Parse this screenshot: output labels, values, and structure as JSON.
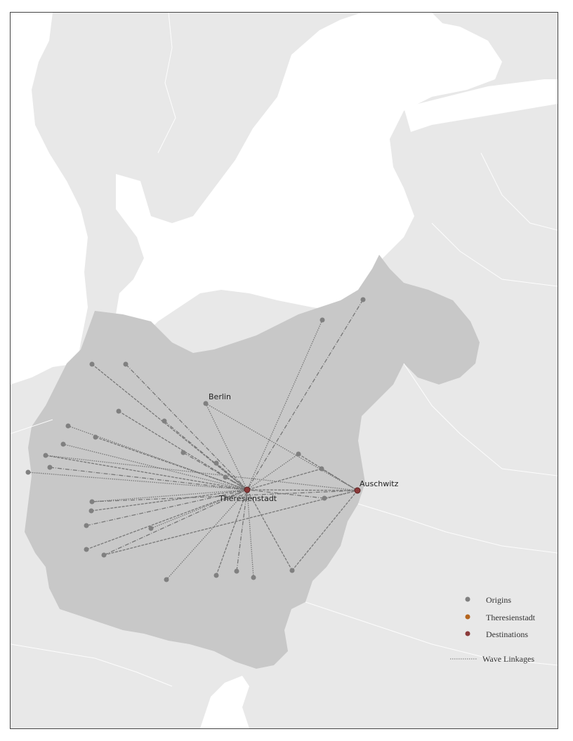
{
  "map": {
    "labels": {
      "berlin": "Berlin",
      "theresienstadt": "Theresienstadt",
      "auschwitz": "Auschwitz"
    },
    "colors": {
      "background_land": "#e8e8e8",
      "sea": "#ffffff",
      "reich_region": "#c8c8c8",
      "origin": "#808080",
      "theresienstadt": "#b5651d",
      "destination": "#8b3a3a",
      "linkage": "#777777"
    }
  },
  "legend": {
    "items": [
      {
        "label": "Origins",
        "color": "#808080",
        "type": "point"
      },
      {
        "label": "Theresienstadt",
        "color": "#b5651d",
        "type": "point"
      },
      {
        "label": "Destinations",
        "color": "#8b3a3a",
        "type": "point"
      },
      {
        "label": "Wave Linkages",
        "color": "#777777",
        "type": "line"
      }
    ]
  }
}
